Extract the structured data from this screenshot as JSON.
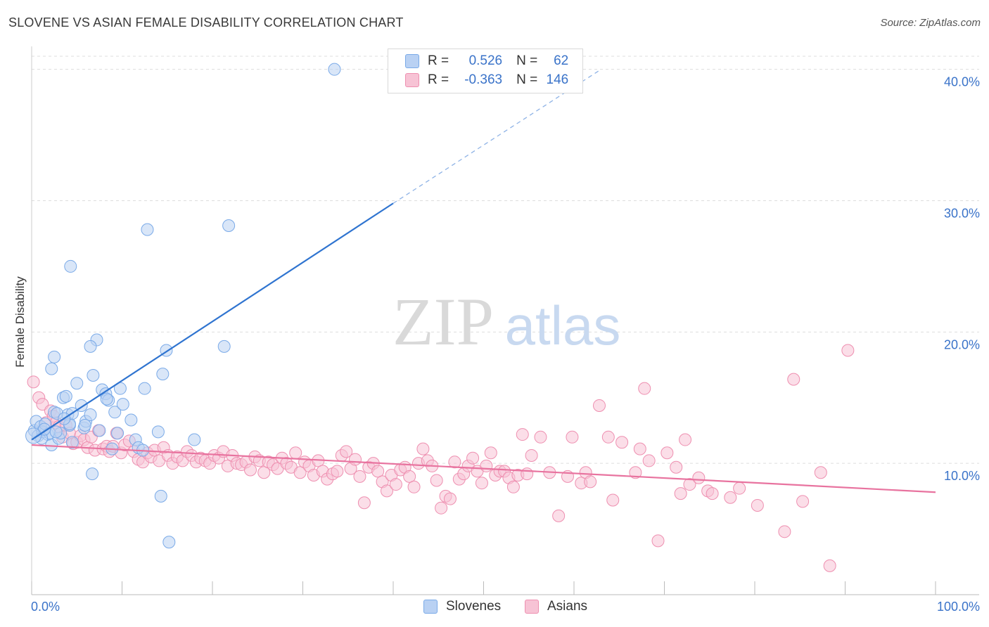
{
  "title": "SLOVENE VS ASIAN FEMALE DISABILITY CORRELATION CHART",
  "source": "Source: ZipAtlas.com",
  "watermark": {
    "zip": "ZIP",
    "atlas": "atlas"
  },
  "legend": {
    "r_label": "R =",
    "n_label": "N =",
    "series": [
      {
        "name": "Slovenes",
        "r": "0.526",
        "n": "62",
        "color": "#7aaae8",
        "fill": "#b9d1f3",
        "line": "#2f74d0"
      },
      {
        "name": "Asians",
        "r": "-0.363",
        "n": "146",
        "color": "#ee8fb0",
        "fill": "#f7c3d5",
        "line": "#e8739f"
      }
    ]
  },
  "chart_data": {
    "type": "scatter",
    "title": "SLOVENE VS ASIAN FEMALE DISABILITY CORRELATION CHART",
    "xlabel": "",
    "ylabel": "Female Disability",
    "xlim": [
      0,
      100
    ],
    "ylim": [
      0,
      41
    ],
    "x_tick_labels": [
      "0.0%",
      "100.0%"
    ],
    "y_ticks": [
      10,
      20,
      30,
      40
    ],
    "y_tick_labels": [
      "10.0%",
      "20.0%",
      "30.0%",
      "40.0%"
    ],
    "series": [
      {
        "name": "Slovenes",
        "r": 0.526,
        "n": 62,
        "trend": {
          "x0": 0,
          "y0": 11.8,
          "x1": 40,
          "y1": 29.8,
          "dash_to_x": 63,
          "dash_to_y": 40
        },
        "points": [
          [
            0.3,
            12.5
          ],
          [
            0.5,
            13.2
          ],
          [
            0.7,
            12.1
          ],
          [
            1.0,
            12.8
          ],
          [
            1.2,
            12.4
          ],
          [
            1.5,
            13.0
          ],
          [
            1.8,
            12.2
          ],
          [
            2.0,
            12.3
          ],
          [
            2.2,
            11.4
          ],
          [
            2.5,
            13.9
          ],
          [
            2.8,
            13.8
          ],
          [
            3.0,
            11.9
          ],
          [
            3.2,
            12.3
          ],
          [
            3.5,
            15.0
          ],
          [
            3.8,
            15.1
          ],
          [
            4.0,
            13.7
          ],
          [
            4.2,
            12.9
          ],
          [
            4.5,
            11.6
          ],
          [
            2.2,
            17.2
          ],
          [
            2.5,
            18.1
          ],
          [
            4.2,
            13.0
          ],
          [
            4.5,
            13.8
          ],
          [
            5.0,
            16.1
          ],
          [
            5.5,
            14.4
          ],
          [
            5.8,
            12.7
          ],
          [
            6.0,
            13.2
          ],
          [
            6.5,
            13.7
          ],
          [
            6.8,
            16.7
          ],
          [
            7.2,
            19.4
          ],
          [
            7.5,
            12.5
          ],
          [
            7.8,
            15.6
          ],
          [
            8.2,
            15.3
          ],
          [
            8.5,
            14.8
          ],
          [
            8.9,
            11.1
          ],
          [
            9.2,
            13.9
          ],
          [
            9.5,
            12.3
          ],
          [
            9.8,
            15.7
          ],
          [
            10.1,
            14.5
          ],
          [
            11.0,
            13.3
          ],
          [
            11.5,
            11.8
          ],
          [
            11.8,
            11.2
          ],
          [
            12.5,
            15.7
          ],
          [
            12.8,
            27.8
          ],
          [
            12.3,
            11.0
          ],
          [
            14.0,
            12.4
          ],
          [
            14.5,
            16.8
          ],
          [
            15.2,
            4.0
          ],
          [
            14.3,
            7.5
          ],
          [
            6.5,
            18.9
          ],
          [
            4.3,
            25.0
          ],
          [
            18.0,
            11.8
          ],
          [
            21.3,
            18.9
          ],
          [
            21.8,
            28.1
          ],
          [
            33.5,
            40.0
          ],
          [
            14.9,
            18.6
          ],
          [
            6.7,
            9.2
          ],
          [
            1.1,
            11.9
          ],
          [
            3.6,
            13.4
          ],
          [
            5.9,
            12.9
          ],
          [
            8.3,
            14.9
          ],
          [
            2.7,
            12.4
          ],
          [
            1.4,
            12.6
          ]
        ]
      },
      {
        "name": "Asians",
        "r": -0.363,
        "n": 146,
        "trend": {
          "x0": 0,
          "y0": 11.4,
          "x1": 100,
          "y1": 7.8
        },
        "points": [
          [
            0.2,
            16.2
          ],
          [
            0.8,
            15.0
          ],
          [
            1.2,
            14.5
          ],
          [
            1.6,
            13.1
          ],
          [
            2.1,
            14.0
          ],
          [
            2.4,
            13.6
          ],
          [
            2.7,
            13.1
          ],
          [
            3.0,
            12.8
          ],
          [
            3.4,
            12.0
          ],
          [
            3.8,
            12.9
          ],
          [
            4.2,
            12.3
          ],
          [
            4.6,
            11.5
          ],
          [
            5.0,
            11.6
          ],
          [
            5.4,
            12.1
          ],
          [
            5.8,
            11.8
          ],
          [
            6.2,
            11.2
          ],
          [
            6.6,
            12.0
          ],
          [
            7.0,
            11.0
          ],
          [
            7.4,
            12.5
          ],
          [
            7.9,
            11.1
          ],
          [
            8.3,
            11.3
          ],
          [
            8.6,
            10.9
          ],
          [
            9.0,
            11.3
          ],
          [
            9.4,
            12.3
          ],
          [
            9.9,
            10.8
          ],
          [
            10.3,
            11.4
          ],
          [
            10.8,
            11.7
          ],
          [
            11.3,
            10.9
          ],
          [
            11.8,
            10.3
          ],
          [
            12.3,
            10.1
          ],
          [
            12.8,
            10.8
          ],
          [
            13.2,
            10.5
          ],
          [
            13.6,
            11.0
          ],
          [
            14.1,
            10.2
          ],
          [
            14.6,
            11.2
          ],
          [
            15.1,
            10.6
          ],
          [
            15.6,
            10.0
          ],
          [
            16.1,
            10.5
          ],
          [
            16.7,
            10.2
          ],
          [
            17.2,
            10.9
          ],
          [
            17.7,
            10.6
          ],
          [
            18.2,
            10.1
          ],
          [
            18.7,
            10.4
          ],
          [
            19.2,
            10.2
          ],
          [
            19.7,
            10.0
          ],
          [
            20.2,
            10.6
          ],
          [
            20.7,
            10.4
          ],
          [
            21.2,
            10.9
          ],
          [
            21.7,
            9.8
          ],
          [
            22.2,
            10.6
          ],
          [
            22.7,
            10.0
          ],
          [
            23.2,
            9.9
          ],
          [
            23.7,
            10.1
          ],
          [
            24.2,
            9.5
          ],
          [
            24.7,
            10.5
          ],
          [
            25.2,
            10.2
          ],
          [
            25.7,
            9.3
          ],
          [
            26.2,
            10.1
          ],
          [
            26.7,
            9.9
          ],
          [
            27.2,
            9.6
          ],
          [
            27.7,
            10.4
          ],
          [
            28.2,
            10.0
          ],
          [
            28.7,
            9.7
          ],
          [
            29.2,
            10.8
          ],
          [
            29.7,
            9.3
          ],
          [
            30.2,
            10.1
          ],
          [
            30.7,
            9.8
          ],
          [
            31.2,
            9.1
          ],
          [
            31.7,
            10.2
          ],
          [
            32.2,
            9.4
          ],
          [
            32.7,
            8.8
          ],
          [
            33.3,
            9.2
          ],
          [
            33.8,
            9.4
          ],
          [
            34.3,
            10.6
          ],
          [
            34.8,
            10.9
          ],
          [
            35.3,
            9.6
          ],
          [
            35.8,
            10.3
          ],
          [
            36.3,
            9.0
          ],
          [
            36.8,
            7.0
          ],
          [
            37.3,
            9.7
          ],
          [
            37.8,
            10.0
          ],
          [
            38.3,
            9.4
          ],
          [
            38.8,
            8.6
          ],
          [
            39.3,
            7.9
          ],
          [
            39.8,
            9.1
          ],
          [
            40.3,
            8.4
          ],
          [
            40.8,
            9.5
          ],
          [
            41.3,
            9.7
          ],
          [
            41.8,
            9.0
          ],
          [
            42.3,
            8.2
          ],
          [
            42.8,
            10.0
          ],
          [
            43.3,
            11.1
          ],
          [
            43.8,
            10.2
          ],
          [
            44.3,
            9.8
          ],
          [
            44.8,
            8.7
          ],
          [
            45.3,
            6.6
          ],
          [
            45.8,
            7.5
          ],
          [
            46.3,
            7.3
          ],
          [
            46.8,
            10.1
          ],
          [
            47.3,
            8.8
          ],
          [
            47.8,
            9.2
          ],
          [
            48.3,
            9.8
          ],
          [
            48.8,
            10.4
          ],
          [
            49.3,
            9.4
          ],
          [
            49.8,
            8.5
          ],
          [
            50.3,
            9.8
          ],
          [
            50.8,
            10.8
          ],
          [
            51.3,
            9.1
          ],
          [
            51.8,
            9.4
          ],
          [
            52.3,
            9.4
          ],
          [
            52.8,
            8.9
          ],
          [
            53.3,
            8.2
          ],
          [
            53.8,
            9.1
          ],
          [
            54.3,
            12.2
          ],
          [
            54.8,
            9.2
          ],
          [
            55.3,
            10.6
          ],
          [
            56.3,
            12.0
          ],
          [
            57.3,
            9.3
          ],
          [
            58.3,
            6.0
          ],
          [
            59.3,
            9.0
          ],
          [
            59.8,
            12.0
          ],
          [
            60.8,
            8.5
          ],
          [
            61.3,
            9.3
          ],
          [
            61.8,
            8.6
          ],
          [
            62.8,
            14.4
          ],
          [
            63.8,
            12.0
          ],
          [
            64.3,
            7.2
          ],
          [
            65.3,
            11.6
          ],
          [
            66.8,
            9.3
          ],
          [
            67.3,
            11.1
          ],
          [
            68.3,
            10.2
          ],
          [
            69.3,
            4.1
          ],
          [
            70.3,
            10.8
          ],
          [
            71.3,
            9.7
          ],
          [
            71.8,
            7.7
          ],
          [
            72.3,
            11.8
          ],
          [
            72.8,
            8.4
          ],
          [
            73.8,
            8.9
          ],
          [
            74.8,
            7.9
          ],
          [
            75.3,
            7.7
          ],
          [
            77.3,
            7.4
          ],
          [
            78.3,
            8.1
          ],
          [
            80.3,
            6.8
          ],
          [
            83.3,
            4.8
          ],
          [
            84.3,
            16.4
          ],
          [
            85.3,
            7.1
          ],
          [
            87.3,
            9.3
          ],
          [
            88.3,
            2.2
          ],
          [
            90.3,
            18.6
          ],
          [
            67.8,
            15.7
          ]
        ]
      }
    ]
  }
}
